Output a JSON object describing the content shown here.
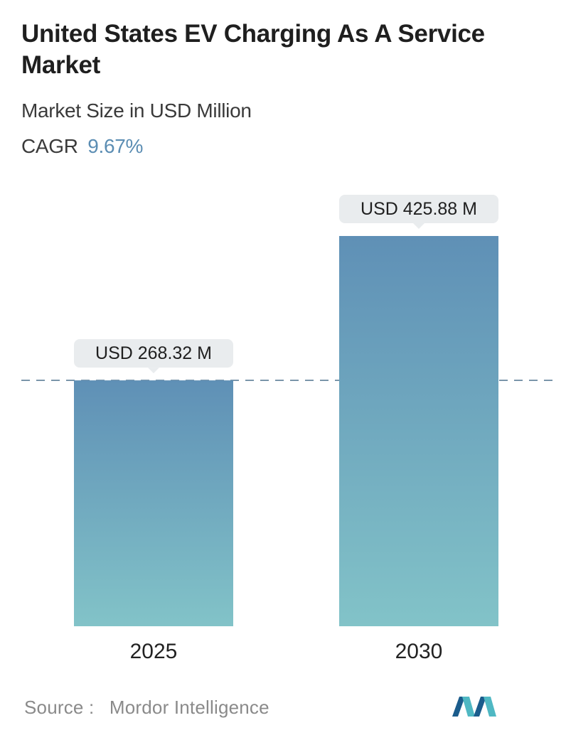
{
  "header": {
    "title": "United States EV Charging As A Service Market",
    "subtitle": "Market Size in USD Million",
    "cagr_label": "CAGR",
    "cagr_value": "9.67%"
  },
  "chart_data": {
    "type": "bar",
    "title": "United States EV Charging As A Service Market",
    "subtitle": "Market Size in USD Million",
    "categories": [
      "2025",
      "2030"
    ],
    "values": [
      268.32,
      425.88
    ],
    "data_labels": [
      "USD 268.32 M",
      "USD 425.88 M"
    ],
    "unit": "USD Million",
    "ylim": [
      0,
      425.88
    ],
    "reference_line": "dashed line at 2025 value",
    "grid": false,
    "legend": "none"
  },
  "footer": {
    "source_label": "Source :",
    "source_value": "Mordor Intelligence"
  },
  "logo": {
    "icon": "mordor-intelligence-logo-icon"
  },
  "colors": {
    "bar_top": "#5f90b6",
    "bar_bottom": "#82c3c8",
    "callout_bg": "#e9ecee",
    "cagr_accent": "#5b8db3",
    "dashed_line": "#5d7f98",
    "logo_dark": "#1b5c8c",
    "logo_light": "#4fb8c3"
  }
}
